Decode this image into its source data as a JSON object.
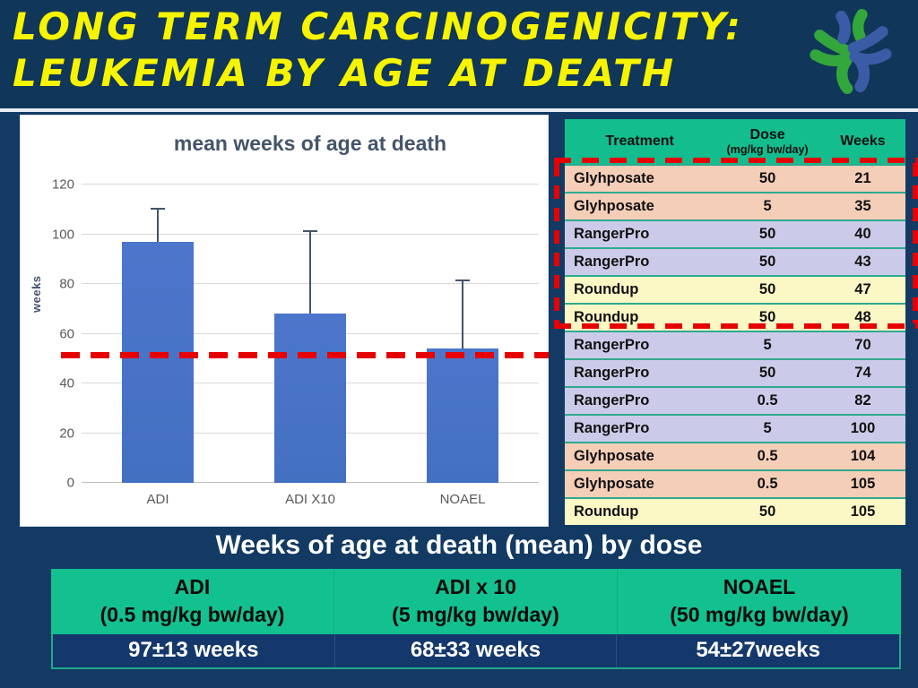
{
  "slide": {
    "title_line1": "LONG TERM CARCINOGENICITY:",
    "title_line2": "LEUKEMIA BY AGE AT DEATH"
  },
  "chart_data": {
    "type": "bar",
    "title": "mean weeks of age at death",
    "categories": [
      "ADI",
      "ADI X10",
      "NOAEL"
    ],
    "values": [
      97,
      68,
      54
    ],
    "error_plus": [
      13,
      33,
      27
    ],
    "xlabel": "",
    "ylabel": "weeks",
    "ylim": [
      0,
      120
    ],
    "yticks": [
      0,
      20,
      40,
      60,
      80,
      100,
      120
    ],
    "grid": true,
    "legend": false,
    "reference_line_value": 51,
    "bar_color": "#4472c4",
    "reference_line_color": "#e60000"
  },
  "dose_table": {
    "headers": {
      "treatment": "Treatment",
      "dose": "Dose",
      "dose_sub": "(mg/kg bw/day)",
      "weeks": "Weeks"
    },
    "rows": [
      {
        "treatment": "Glyhposate",
        "dose": "50",
        "weeks": "21",
        "group": "glyhposate"
      },
      {
        "treatment": "Glyhposate",
        "dose": "5",
        "weeks": "35",
        "group": "glyhposate"
      },
      {
        "treatment": "RangerPro",
        "dose": "50",
        "weeks": "40",
        "group": "rangerpro"
      },
      {
        "treatment": "RangerPro",
        "dose": "50",
        "weeks": "43",
        "group": "rangerpro"
      },
      {
        "treatment": "Roundup",
        "dose": "50",
        "weeks": "47",
        "group": "roundup"
      },
      {
        "treatment": "Roundup",
        "dose": "50",
        "weeks": "48",
        "group": "roundup"
      },
      {
        "treatment": "RangerPro",
        "dose": "5",
        "weeks": "70",
        "group": "rangerpro"
      },
      {
        "treatment": "RangerPro",
        "dose": "50",
        "weeks": "74",
        "group": "rangerpro"
      },
      {
        "treatment": "RangerPro",
        "dose": "0.5",
        "weeks": "82",
        "group": "rangerpro"
      },
      {
        "treatment": "RangerPro",
        "dose": "5",
        "weeks": "100",
        "group": "rangerpro"
      },
      {
        "treatment": "Glyhposate",
        "dose": "0.5",
        "weeks": "104",
        "group": "glyhposate"
      },
      {
        "treatment": "Glyhposate",
        "dose": "0.5",
        "weeks": "105",
        "group": "glyhposate"
      },
      {
        "treatment": "Roundup",
        "dose": "50",
        "weeks": "105",
        "group": "roundup"
      }
    ],
    "highlighted_rows": [
      0,
      1,
      2,
      3,
      4,
      5
    ]
  },
  "summary": {
    "heading": "Weeks of age at death (mean) by dose",
    "columns": [
      {
        "label": "ADI",
        "dose": "(0.5 mg/kg bw/day)",
        "value": "97±13 weeks"
      },
      {
        "label": "ADI x 10",
        "dose": "(5 mg/kg bw/day)",
        "value": "68±33 weeks"
      },
      {
        "label": "NOAEL",
        "dose": "(50 mg/kg bw/day)",
        "value": "54±27weeks"
      }
    ]
  },
  "colors": {
    "background": "#123a63",
    "title_yellow": "#f7f400",
    "table_header_green": "#13bd8e",
    "row_glyhposate": "#f5ceb8",
    "row_rangerpro": "#cbcbe9",
    "row_roundup": "#fbf8c5",
    "row_divider_teal": "#2fa98f",
    "bar_blue": "#4472c4",
    "highlight_red": "#e60000",
    "summary_green": "#13c08f",
    "summary_value_bg": "#14386b",
    "logo_green": "#33a63c",
    "logo_blue": "#3a5ba5"
  }
}
